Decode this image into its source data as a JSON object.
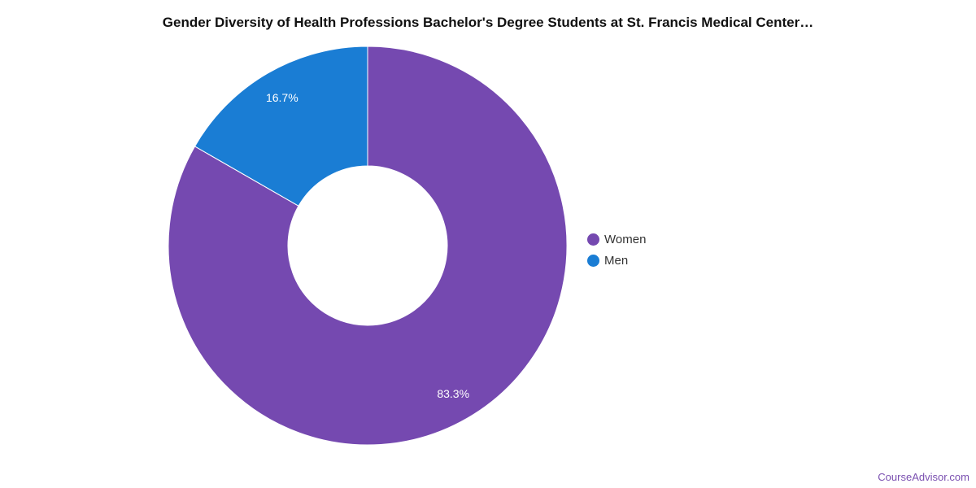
{
  "chart_data": {
    "type": "pie",
    "donut": true,
    "title": "Gender Diversity of Health Professions Bachelor's Degree Students at St. Francis Medical Center…",
    "categories": [
      "Women",
      "Men"
    ],
    "values": [
      83.3,
      16.7
    ],
    "labels": [
      "83.3%",
      "16.7%"
    ],
    "colors": [
      "#7549b0",
      "#1a7dd4"
    ],
    "legend_position": "right"
  },
  "credit": "CourseAdvisor.com"
}
